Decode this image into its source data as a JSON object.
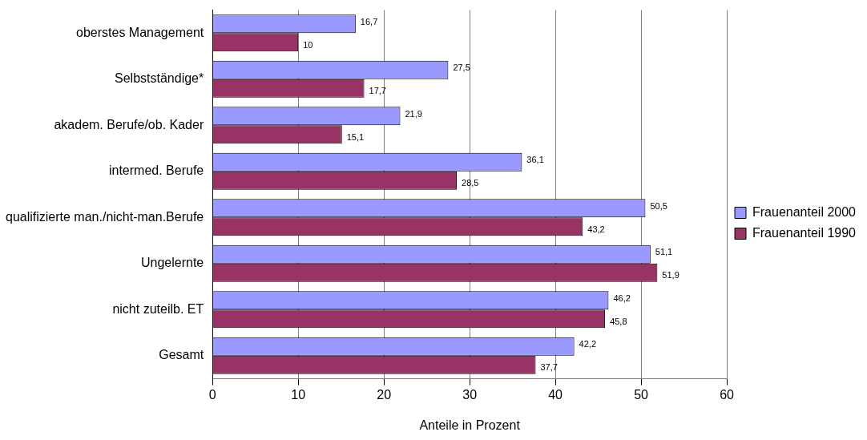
{
  "chart_data": {
    "type": "bar",
    "orientation": "horizontal",
    "xlabel": "Anteile in Prozent",
    "categories": [
      "oberstes Management",
      "Selbstständige*",
      "akadem. Berufe/ob. Kader",
      "intermed. Berufe",
      "qualifizierte man./nicht-man.Berufe",
      "Ungelernte",
      "nicht zuteilb. ET",
      "Gesamt"
    ],
    "series": [
      {
        "name": "Frauenanteil 2000",
        "color": "#9999ff",
        "values": [
          16.7,
          27.5,
          21.9,
          36.1,
          50.5,
          51.1,
          46.2,
          42.2
        ],
        "value_labels": [
          "16,7",
          "27,5",
          "21,9",
          "36,1",
          "50,5",
          "51,1",
          "46,2",
          "42,2"
        ]
      },
      {
        "name": "Frauenanteil 1990",
        "color": "#993366",
        "values": [
          10,
          17.7,
          15.1,
          28.5,
          43.2,
          51.9,
          45.8,
          37.7
        ],
        "value_labels": [
          "10",
          "17,7",
          "15,1",
          "28,5",
          "43,2",
          "51,9",
          "45,8",
          "37,7"
        ]
      }
    ],
    "xlim": [
      0,
      60
    ],
    "xticks": [
      0,
      10,
      20,
      30,
      40,
      50,
      60
    ],
    "grid": "x",
    "legend": "right"
  }
}
